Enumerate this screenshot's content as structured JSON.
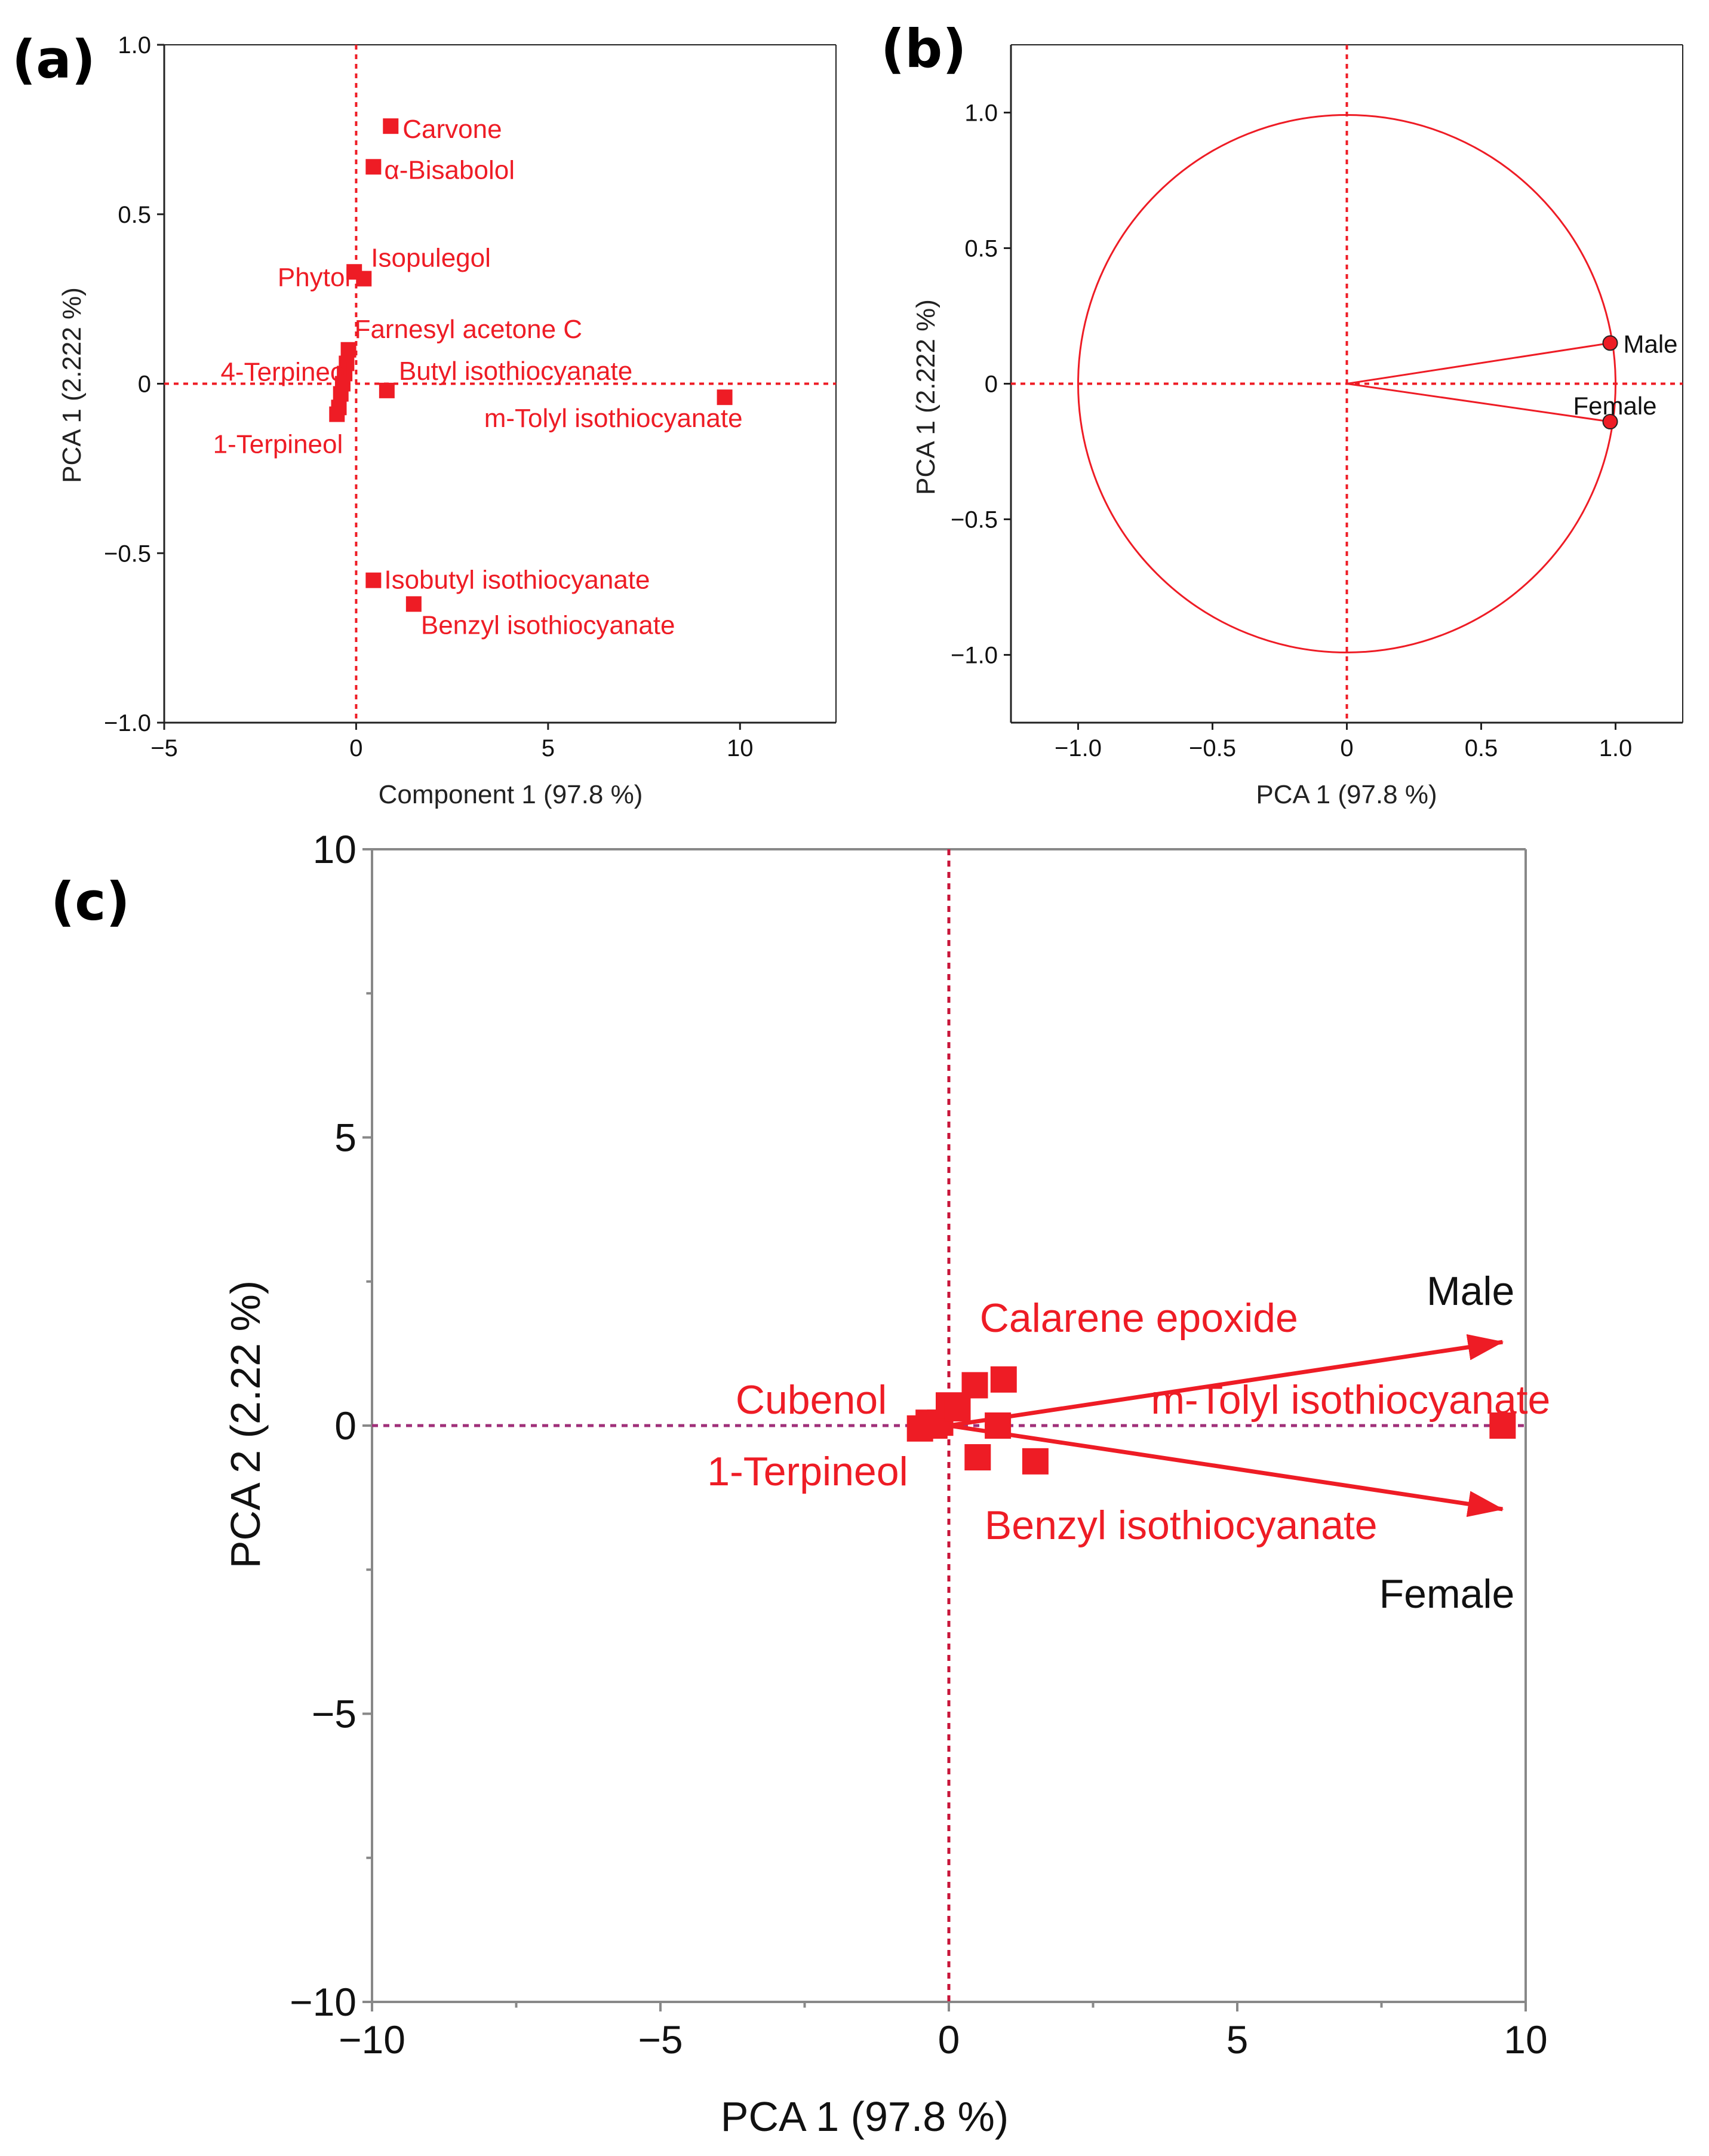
{
  "colors": {
    "accent": "#ee1c25",
    "axis": "#222222",
    "frame": "#888888",
    "ref_line_c": "#a0307a",
    "text": "#000000"
  },
  "chart_data": [
    {
      "panel": "(a)",
      "type": "scatter",
      "title": "",
      "xlabel": "Component 1  (97.8 %)",
      "ylabel": "PCA 1  (2.222 %)",
      "xlim": [
        -5,
        12.5
      ],
      "ylim": [
        -1.0,
        1.0
      ],
      "xticks": [
        -5,
        0,
        5,
        10
      ],
      "yticks": [
        -1.0,
        -0.5,
        0,
        0.5,
        1.0
      ],
      "xtick_labels": [
        "−5",
        "0",
        "5",
        "10"
      ],
      "ytick_labels": [
        "−1.0",
        "−0.5",
        "0",
        "0.5",
        "1.0"
      ],
      "grid": false,
      "reference_lines": {
        "x": 0,
        "y": 0
      },
      "points": [
        {
          "label": "Carvone",
          "x": 0.9,
          "y": 0.76
        },
        {
          "label": "α-Bisabolol",
          "x": 0.45,
          "y": 0.64
        },
        {
          "label": "Phytol",
          "x": -0.05,
          "y": 0.33
        },
        {
          "label": "Isopulegol",
          "x": 0.2,
          "y": 0.31
        },
        {
          "label": "Farnesyl acetone C",
          "x": -0.2,
          "y": 0.1
        },
        {
          "label": "",
          "x": -0.25,
          "y": 0.06
        },
        {
          "label": "4-Terpineol",
          "x": -0.3,
          "y": 0.03
        },
        {
          "label": "",
          "x": -0.35,
          "y": 0.0
        },
        {
          "label": "",
          "x": -0.4,
          "y": -0.03
        },
        {
          "label": "",
          "x": -0.45,
          "y": -0.07
        },
        {
          "label": "1-Terpineol",
          "x": -0.5,
          "y": -0.09
        },
        {
          "label": "Butyl isothiocyanate",
          "x": 0.8,
          "y": -0.02
        },
        {
          "label": "m-Tolyl isothiocyanate",
          "x": 9.6,
          "y": -0.04
        },
        {
          "label": "Isobutyl isothiocyanate",
          "x": 0.45,
          "y": -0.58
        },
        {
          "label": "Benzyl isothiocyanate",
          "x": 1.5,
          "y": -0.65
        }
      ]
    },
    {
      "panel": "(b)",
      "type": "scatter",
      "title": "",
      "xlabel": "PCA 1  (97.8 %)",
      "ylabel": "PCA 1  (2.222 %)",
      "xlim": [
        -1.25,
        1.25
      ],
      "ylim": [
        -1.25,
        1.25
      ],
      "xticks": [
        -1.0,
        -0.5,
        0,
        0.5,
        1.0
      ],
      "yticks": [
        -1.0,
        -0.5,
        0,
        0.5,
        1.0
      ],
      "xtick_labels": [
        "−1.0",
        "−0.5",
        "0",
        "0.5",
        "1.0"
      ],
      "ytick_labels": [
        "−1.0",
        "−0.5",
        "0",
        "0.5",
        "1.0"
      ],
      "grid": false,
      "circle_radius": 1.0,
      "reference_lines": {
        "x": 0,
        "y": 0
      },
      "vectors": [
        {
          "label": "Male",
          "x": 0.98,
          "y": 0.15
        },
        {
          "label": "Female",
          "x": 0.98,
          "y": -0.14
        }
      ]
    },
    {
      "panel": "(c)",
      "type": "scatter",
      "title": "",
      "xlabel": "PCA 1  (97.8 %)",
      "ylabel": "PCA 2  (2.22 %)",
      "xlim": [
        -10,
        10
      ],
      "ylim": [
        -10,
        10
      ],
      "xticks": [
        -10,
        -5,
        0,
        5,
        10
      ],
      "yticks": [
        -10,
        -5,
        0,
        5,
        10
      ],
      "xtick_labels": [
        "−10",
        "−5",
        "0",
        "5",
        "10"
      ],
      "ytick_labels": [
        "−10",
        "−5",
        "0",
        "5",
        "10"
      ],
      "grid": false,
      "reference_lines": {
        "x": 0,
        "y": 0
      },
      "points": [
        {
          "label": "1-Terpineol",
          "x": -0.5,
          "y": -0.05
        },
        {
          "label": "Cubenol",
          "x": -0.35,
          "y": 0.05
        },
        {
          "label": "",
          "x": -0.25,
          "y": 0.0
        },
        {
          "label": "",
          "x": -0.15,
          "y": 0.05
        },
        {
          "label": "",
          "x": 0.0,
          "y": 0.35
        },
        {
          "label": "",
          "x": 0.15,
          "y": 0.3
        },
        {
          "label": "",
          "x": 0.45,
          "y": 0.7
        },
        {
          "label": "Calarene epoxide",
          "x": 0.95,
          "y": 0.8
        },
        {
          "label": "",
          "x": 0.85,
          "y": 0.0
        },
        {
          "label": "",
          "x": 0.5,
          "y": -0.55
        },
        {
          "label": "Benzyl isothiocyanate",
          "x": 1.5,
          "y": -0.62
        },
        {
          "label": "m-Tolyl isothiocyanate",
          "x": 9.6,
          "y": 0.0
        }
      ],
      "vectors": [
        {
          "label": "Male",
          "x": 9.6,
          "y": 1.45
        },
        {
          "label": "Female",
          "x": 9.6,
          "y": -1.45
        }
      ]
    }
  ]
}
